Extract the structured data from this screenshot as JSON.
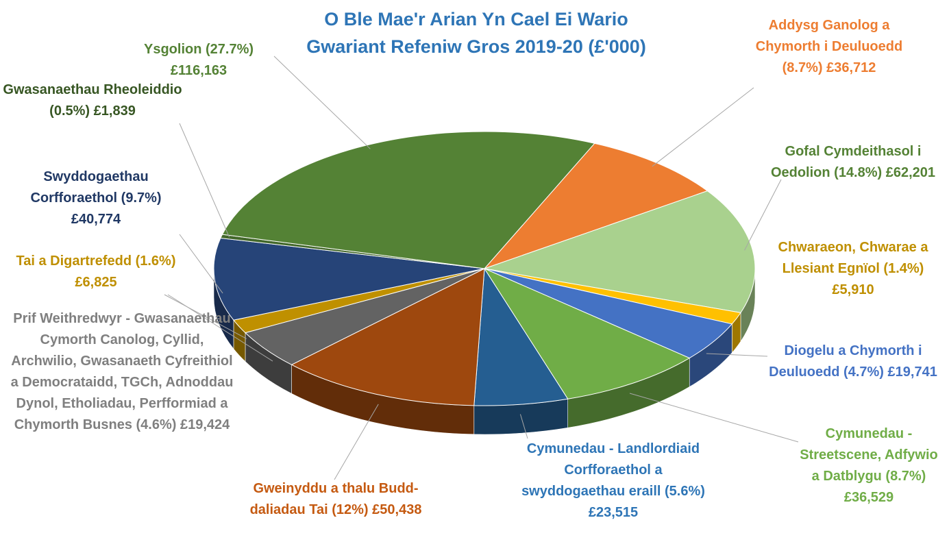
{
  "chart_data": {
    "type": "pie",
    "title": "O Ble Mae'r Arian Yn Cael Ei Wario Gwariant Refeniw Gros 2019-20 (£'000)",
    "categories": [
      "Addysg Ganolog a Chymorth i Deuluoedd (8.7%)",
      "Gofal Cymdeithasol i Oedolion (14.8%)",
      "Chwaraeon, Chwarae a Llesiant Egnïol (1.4%)",
      "Diogelu a Chymorth i Deuluoedd (4.7%)",
      "Cymunedau - Streetscene, Adfywio a Datblygu (8.7%)",
      "Cymunedau - Landlordiaid Corfforaethol a swyddogaethau eraill (5.6%)",
      "Gweinyddu a thalu Budd-daliadau Tai (12%)",
      "Prif Weithredwyr - Gwasanaethau Cymorth Canolog, Cyllid, Archwilio, Gwasanaeth Cyfreithiol a Democrataidd, TGCh, Adnoddau Dynol, Etholiadau, Perfformiad a Chymorth Busnes (4.6%)",
      "Tai a Digartrefedd (1.6%)",
      "Swyddogaethau Corfforaethol (9.7%)",
      "Gwasanaethau Rheoleiddio (0.5%)",
      "Ysgolion (27.7%)"
    ],
    "values": [
      36712,
      62201,
      5910,
      19741,
      36529,
      23515,
      50438,
      19424,
      6825,
      40774,
      1839,
      116163
    ],
    "value_labels": [
      "£36,712",
      "£62,201",
      "£5,910",
      "£19,741",
      "£36,529",
      "£23,515",
      "£50,438",
      "£19,424",
      "£6,825",
      "£40,774",
      "£1,839",
      "£116,163"
    ],
    "colors": [
      "#ed7d31",
      "#a9d18e",
      "#ffc000",
      "#4472c4",
      "#70ad47",
      "#255e91",
      "#9e480e",
      "#636363",
      "#bf9000",
      "#264478",
      "#43682b",
      "#548235"
    ]
  }
}
